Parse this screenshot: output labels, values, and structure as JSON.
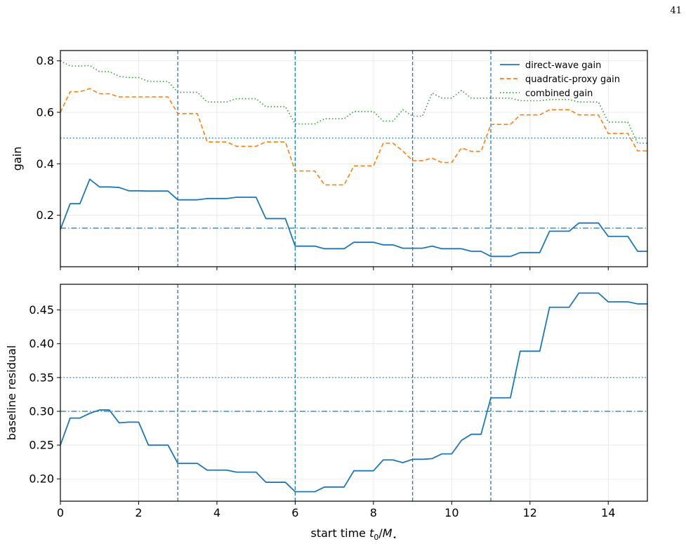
{
  "page_number": "41",
  "colors": {
    "direct": "#1f77b4",
    "quadratic": "#ff7f0e",
    "combined": "#2ca02c",
    "grid": "#e6e6e6"
  },
  "chart_data": [
    {
      "type": "line",
      "ylabel": "gain",
      "xlim": [
        0,
        15
      ],
      "ylim": [
        0,
        0.84
      ],
      "yticks": [
        0.2,
        0.4,
        0.6,
        0.8
      ],
      "ytick_labels": [
        "0.2",
        "0.4",
        "0.6",
        "0.8"
      ],
      "xticks": [
        0,
        2,
        4,
        6,
        8,
        10,
        12,
        14
      ],
      "vlines": [
        3,
        6,
        9,
        11
      ],
      "hlines": [
        {
          "y": 0.5,
          "style": "dotted"
        },
        {
          "y": 0.15,
          "style": "dashdot"
        }
      ],
      "legend_position": "top-right",
      "grid": true,
      "series": [
        {
          "name": "direct-wave gain",
          "style": "solid",
          "color": "#1f77b4",
          "x": [
            0,
            0.25,
            0.5,
            0.75,
            1,
            1.25,
            1.5,
            1.75,
            2,
            2.25,
            2.5,
            2.75,
            3,
            3.25,
            3.5,
            3.75,
            4,
            4.25,
            4.5,
            4.75,
            5,
            5.25,
            5.5,
            5.75,
            6,
            6.25,
            6.5,
            6.75,
            7,
            7.25,
            7.5,
            7.75,
            8,
            8.25,
            8.5,
            8.75,
            9,
            9.25,
            9.5,
            9.75,
            10,
            10.25,
            10.5,
            10.75,
            11,
            11.25,
            11.5,
            11.75,
            12,
            12.25,
            12.5,
            12.75,
            13,
            13.25,
            13.5,
            13.75,
            14,
            14.25,
            14.5,
            14.75,
            15
          ],
          "y": [
            0.145,
            0.245,
            0.245,
            0.34,
            0.31,
            0.31,
            0.308,
            0.295,
            0.295,
            0.294,
            0.294,
            0.294,
            0.26,
            0.26,
            0.26,
            0.265,
            0.265,
            0.265,
            0.27,
            0.27,
            0.27,
            0.187,
            0.187,
            0.187,
            0.08,
            0.08,
            0.08,
            0.07,
            0.07,
            0.07,
            0.095,
            0.095,
            0.095,
            0.085,
            0.085,
            0.072,
            0.072,
            0.072,
            0.08,
            0.07,
            0.07,
            0.07,
            0.06,
            0.06,
            0.04,
            0.04,
            0.04,
            0.055,
            0.055,
            0.055,
            0.138,
            0.138,
            0.138,
            0.17,
            0.17,
            0.17,
            0.118,
            0.118,
            0.118,
            0.06,
            0.06
          ]
        },
        {
          "name": "quadratic-proxy gain",
          "style": "dashed",
          "color": "#ff7f0e",
          "x": [
            0,
            0.25,
            0.5,
            0.75,
            1,
            1.25,
            1.5,
            1.75,
            2,
            2.25,
            2.5,
            2.75,
            3,
            3.25,
            3.5,
            3.75,
            4,
            4.25,
            4.5,
            4.75,
            5,
            5.25,
            5.5,
            5.75,
            6,
            6.25,
            6.5,
            6.75,
            7,
            7.25,
            7.5,
            7.75,
            8,
            8.25,
            8.5,
            8.75,
            9,
            9.25,
            9.5,
            9.75,
            10,
            10.25,
            10.5,
            10.75,
            11,
            11.25,
            11.5,
            11.75,
            12,
            12.25,
            12.5,
            12.75,
            13,
            13.25,
            13.5,
            13.75,
            14,
            14.25,
            14.5,
            14.75,
            15
          ],
          "y": [
            0.6,
            0.68,
            0.68,
            0.692,
            0.672,
            0.672,
            0.66,
            0.66,
            0.66,
            0.66,
            0.66,
            0.66,
            0.595,
            0.595,
            0.595,
            0.485,
            0.485,
            0.485,
            0.468,
            0.468,
            0.468,
            0.485,
            0.485,
            0.485,
            0.372,
            0.372,
            0.372,
            0.318,
            0.318,
            0.318,
            0.392,
            0.392,
            0.392,
            0.48,
            0.48,
            0.45,
            0.412,
            0.412,
            0.422,
            0.405,
            0.405,
            0.462,
            0.448,
            0.448,
            0.553,
            0.553,
            0.553,
            0.59,
            0.59,
            0.59,
            0.61,
            0.61,
            0.61,
            0.59,
            0.59,
            0.59,
            0.518,
            0.518,
            0.518,
            0.45,
            0.45
          ]
        },
        {
          "name": "combined gain",
          "style": "dotted",
          "color": "#2ca02c",
          "x": [
            0,
            0.25,
            0.5,
            0.75,
            1,
            1.25,
            1.5,
            1.75,
            2,
            2.25,
            2.5,
            2.75,
            3,
            3.25,
            3.5,
            3.75,
            4,
            4.25,
            4.5,
            4.75,
            5,
            5.25,
            5.5,
            5.75,
            6,
            6.25,
            6.5,
            6.75,
            7,
            7.25,
            7.5,
            7.75,
            8,
            8.25,
            8.5,
            8.75,
            9,
            9.25,
            9.5,
            9.75,
            10,
            10.25,
            10.5,
            10.75,
            11,
            11.25,
            11.5,
            11.75,
            12,
            12.25,
            12.5,
            12.75,
            13,
            13.25,
            13.5,
            13.75,
            14,
            14.25,
            14.5,
            14.75,
            15
          ],
          "y": [
            0.8,
            0.78,
            0.78,
            0.782,
            0.758,
            0.758,
            0.74,
            0.735,
            0.735,
            0.72,
            0.72,
            0.72,
            0.678,
            0.678,
            0.678,
            0.64,
            0.64,
            0.64,
            0.653,
            0.653,
            0.653,
            0.622,
            0.622,
            0.622,
            0.555,
            0.555,
            0.555,
            0.575,
            0.575,
            0.575,
            0.603,
            0.603,
            0.603,
            0.566,
            0.566,
            0.61,
            0.585,
            0.585,
            0.675,
            0.655,
            0.655,
            0.685,
            0.655,
            0.655,
            0.655,
            0.655,
            0.655,
            0.645,
            0.645,
            0.645,
            0.65,
            0.65,
            0.65,
            0.64,
            0.64,
            0.64,
            0.562,
            0.562,
            0.562,
            0.48,
            0.48
          ]
        }
      ]
    },
    {
      "type": "line",
      "ylabel": "baseline residual",
      "xlabel_prefix": "start time ",
      "xlabel_var": "t",
      "xlabel_sub": "0",
      "xlabel_mid": "/",
      "xlabel_var2": "M",
      "xlabel_sub2": "⋆",
      "xlim": [
        0,
        15
      ],
      "ylim": [
        0.167,
        0.488
      ],
      "yticks": [
        0.2,
        0.25,
        0.3,
        0.35,
        0.4,
        0.45
      ],
      "ytick_labels": [
        "0.20",
        "0.25",
        "0.30",
        "0.35",
        "0.40",
        "0.45"
      ],
      "xticks": [
        0,
        2,
        4,
        6,
        8,
        10,
        12,
        14
      ],
      "xtick_labels": [
        "0",
        "2",
        "4",
        "6",
        "8",
        "10",
        "12",
        "14"
      ],
      "vlines": [
        3,
        6,
        9,
        11
      ],
      "hlines": [
        {
          "y": 0.35,
          "style": "dotted"
        },
        {
          "y": 0.3,
          "style": "dashdot"
        }
      ],
      "grid": true,
      "series": [
        {
          "style": "solid",
          "color": "#1f77b4",
          "x": [
            0,
            0.25,
            0.5,
            0.75,
            1,
            1.25,
            1.5,
            1.75,
            2,
            2.25,
            2.5,
            2.75,
            3,
            3.25,
            3.5,
            3.75,
            4,
            4.25,
            4.5,
            4.75,
            5,
            5.25,
            5.5,
            5.75,
            6,
            6.25,
            6.5,
            6.75,
            7,
            7.25,
            7.5,
            7.75,
            8,
            8.25,
            8.5,
            8.75,
            9,
            9.25,
            9.5,
            9.75,
            10,
            10.25,
            10.5,
            10.75,
            11,
            11.25,
            11.5,
            11.75,
            12,
            12.25,
            12.5,
            12.75,
            13,
            13.25,
            13.5,
            13.75,
            14,
            14.25,
            14.5,
            14.75,
            15
          ],
          "y": [
            0.25,
            0.29,
            0.29,
            0.297,
            0.302,
            0.302,
            0.283,
            0.284,
            0.284,
            0.25,
            0.25,
            0.25,
            0.223,
            0.223,
            0.223,
            0.213,
            0.213,
            0.213,
            0.21,
            0.21,
            0.21,
            0.195,
            0.195,
            0.195,
            0.181,
            0.181,
            0.181,
            0.188,
            0.188,
            0.188,
            0.212,
            0.212,
            0.212,
            0.228,
            0.228,
            0.224,
            0.229,
            0.229,
            0.23,
            0.237,
            0.237,
            0.257,
            0.266,
            0.266,
            0.32,
            0.32,
            0.32,
            0.389,
            0.389,
            0.389,
            0.454,
            0.454,
            0.454,
            0.475,
            0.475,
            0.475,
            0.462,
            0.462,
            0.462,
            0.459,
            0.459
          ]
        }
      ]
    }
  ]
}
